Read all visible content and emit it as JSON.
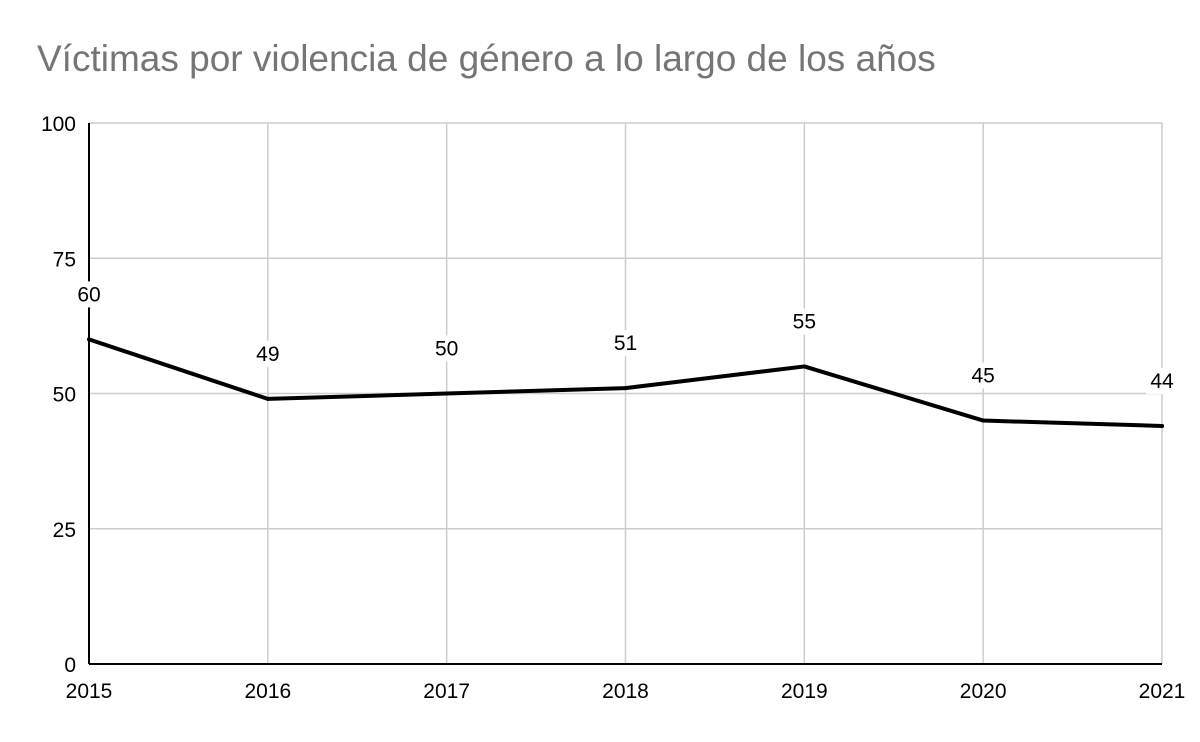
{
  "chart_data": {
    "type": "line",
    "title": "Víctimas por violencia de género a lo largo de los años",
    "xlabel": "",
    "ylabel": "",
    "categories": [
      "2015",
      "2016",
      "2017",
      "2018",
      "2019",
      "2020",
      "2021"
    ],
    "series": [
      {
        "values": [
          60,
          49,
          50,
          51,
          55,
          45,
          44
        ]
      }
    ],
    "data_labels": [
      "60",
      "49",
      "50",
      "51",
      "55",
      "45",
      "44"
    ],
    "ylim": [
      0,
      100
    ],
    "yticks": [
      "0",
      "25",
      "50",
      "75",
      "100"
    ],
    "grid": true,
    "legend": "none",
    "colors": {
      "line": "#000000",
      "grid": "#cccccc",
      "axis": "#000000",
      "title": "#757575"
    }
  }
}
